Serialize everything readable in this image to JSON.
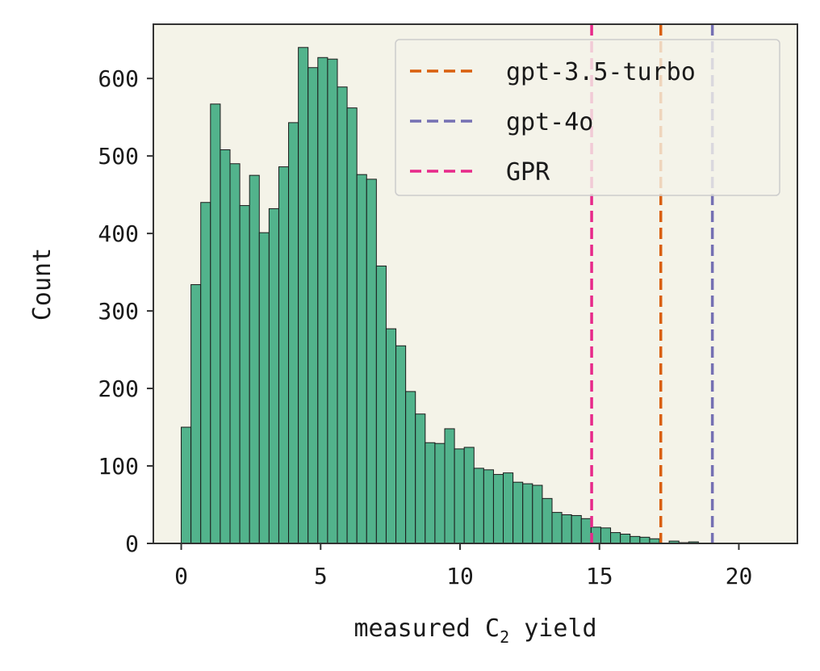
{
  "chart_data": {
    "type": "bar",
    "xlabel_prefix": "measured C",
    "xlabel_subscript": "2",
    "xlabel_suffix": " yield",
    "ylabel": "Count",
    "xlim": [
      -1.0,
      22.1
    ],
    "ylim": [
      0,
      670
    ],
    "xticks": [
      0,
      5,
      10,
      15,
      20
    ],
    "yticks": [
      0,
      100,
      200,
      300,
      400,
      500,
      600
    ],
    "bin_start": 0.0,
    "bin_width": 0.35,
    "values": [
      150,
      334,
      440,
      567,
      508,
      490,
      436,
      475,
      401,
      432,
      486,
      543,
      640,
      614,
      627,
      625,
      589,
      562,
      476,
      470,
      358,
      277,
      255,
      196,
      167,
      130,
      129,
      148,
      122,
      124,
      97,
      95,
      89,
      91,
      79,
      77,
      75,
      58,
      40,
      37,
      36,
      32,
      21,
      20,
      14,
      12,
      9,
      8,
      6,
      0,
      3,
      1,
      2
    ],
    "bar_color": "#52b38c",
    "plot_background": "#f4f3e8",
    "vlines": [
      {
        "name": "gpt-3.5-turbo",
        "x": 17.2,
        "color": "#d95f0e"
      },
      {
        "name": "gpt-4o",
        "x": 19.05,
        "color": "#7570b3"
      },
      {
        "name": "GPR",
        "x": 14.72,
        "color": "#e7298a"
      }
    ],
    "legend_position": "top-right",
    "grid": false
  }
}
